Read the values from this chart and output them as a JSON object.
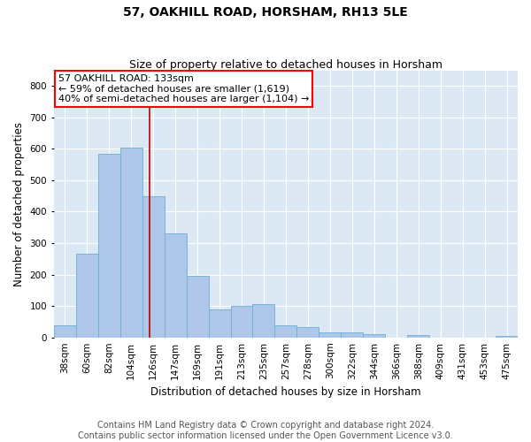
{
  "title": "57, OAKHILL ROAD, HORSHAM, RH13 5LE",
  "subtitle": "Size of property relative to detached houses in Horsham",
  "xlabel": "Distribution of detached houses by size in Horsham",
  "ylabel": "Number of detached properties",
  "bar_labels": [
    "38sqm",
    "60sqm",
    "82sqm",
    "104sqm",
    "126sqm",
    "147sqm",
    "169sqm",
    "191sqm",
    "213sqm",
    "235sqm",
    "257sqm",
    "278sqm",
    "300sqm",
    "322sqm",
    "344sqm",
    "366sqm",
    "388sqm",
    "409sqm",
    "431sqm",
    "453sqm",
    "475sqm"
  ],
  "bar_values": [
    38,
    265,
    585,
    603,
    450,
    330,
    195,
    90,
    101,
    105,
    38,
    33,
    15,
    15,
    10,
    0,
    7,
    0,
    0,
    0,
    6
  ],
  "bar_color": "#aec6e8",
  "bar_edge_color": "#6baed6",
  "annotation_text": "57 OAKHILL ROAD: 133sqm\n← 59% of detached houses are smaller (1,619)\n40% of semi-detached houses are larger (1,104) →",
  "annotation_box_color": "white",
  "annotation_box_edge_color": "red",
  "vline_color": "#c00000",
  "ylim": [
    0,
    850
  ],
  "yticks": [
    0,
    100,
    200,
    300,
    400,
    500,
    600,
    700,
    800
  ],
  "background_color": "#dce9f5",
  "footer_line1": "Contains HM Land Registry data © Crown copyright and database right 2024.",
  "footer_line2": "Contains public sector information licensed under the Open Government Licence v3.0.",
  "title_fontsize": 10,
  "subtitle_fontsize": 9,
  "axis_label_fontsize": 8.5,
  "tick_fontsize": 7.5,
  "annotation_fontsize": 8,
  "footer_fontsize": 7
}
